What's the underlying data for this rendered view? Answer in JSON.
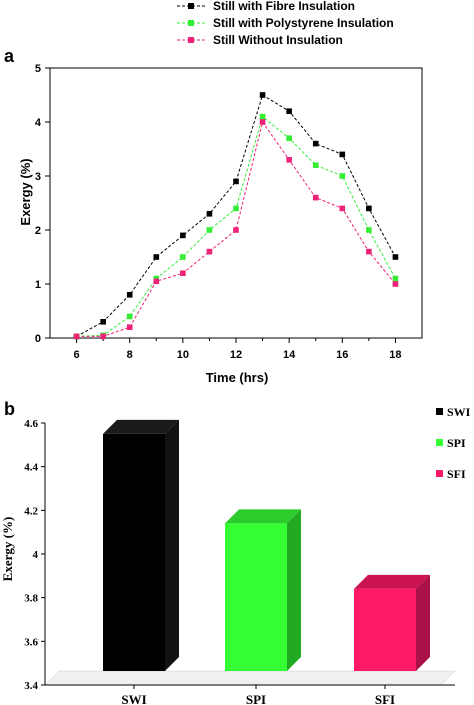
{
  "chart_data": [
    {
      "panel_label": "a",
      "type": "line",
      "title": "",
      "xlabel": "Time (hrs)",
      "ylabel": "Exergy (%)",
      "xlim": [
        5,
        19
      ],
      "ylim": [
        0,
        5
      ],
      "x_ticks": [
        6,
        8,
        10,
        12,
        14,
        16,
        18
      ],
      "y_ticks": [
        0,
        1,
        2,
        3,
        4,
        5
      ],
      "x": [
        6,
        7,
        8,
        9,
        10,
        11,
        12,
        13,
        14,
        15,
        16,
        17,
        18
      ],
      "legend_position": "top",
      "series": [
        {
          "name": "Still with Fibre Insulation",
          "color": "#000000",
          "values": [
            0.03,
            0.3,
            0.8,
            1.5,
            1.9,
            2.3,
            2.9,
            4.5,
            4.2,
            3.6,
            3.4,
            2.4,
            1.5
          ]
        },
        {
          "name": "Still with Polystyrene Insulation",
          "color": "#33ee33",
          "values": [
            0.03,
            0.05,
            0.4,
            1.1,
            1.5,
            2.0,
            2.4,
            4.1,
            3.7,
            3.2,
            3.0,
            2.0,
            1.1
          ]
        },
        {
          "name": "Still Without Insulation",
          "color": "#ee2277",
          "values": [
            0.03,
            0.03,
            0.2,
            1.05,
            1.2,
            1.6,
            2.0,
            4.0,
            3.3,
            2.6,
            2.4,
            1.6,
            1.0
          ]
        }
      ]
    },
    {
      "panel_label": "b",
      "type": "bar",
      "title": "",
      "xlabel": "",
      "ylabel": "Exergy (%)",
      "ylim": [
        3.4,
        4.6
      ],
      "y_ticks": [
        3.4,
        3.6,
        3.8,
        4,
        4.2,
        4.4,
        4.6
      ],
      "legend_position": "right",
      "categories": [
        "SWI",
        "SPI",
        "SFI"
      ],
      "values": [
        4.55,
        4.14,
        3.84
      ],
      "colors": [
        "#000000",
        "#33ff33",
        "#ff1a66"
      ],
      "side_colors": [
        "#111111",
        "#22aa22",
        "#aa1148"
      ],
      "top_colors": [
        "#1a1a1a",
        "#2bcc2b",
        "#cc1452"
      ]
    }
  ]
}
